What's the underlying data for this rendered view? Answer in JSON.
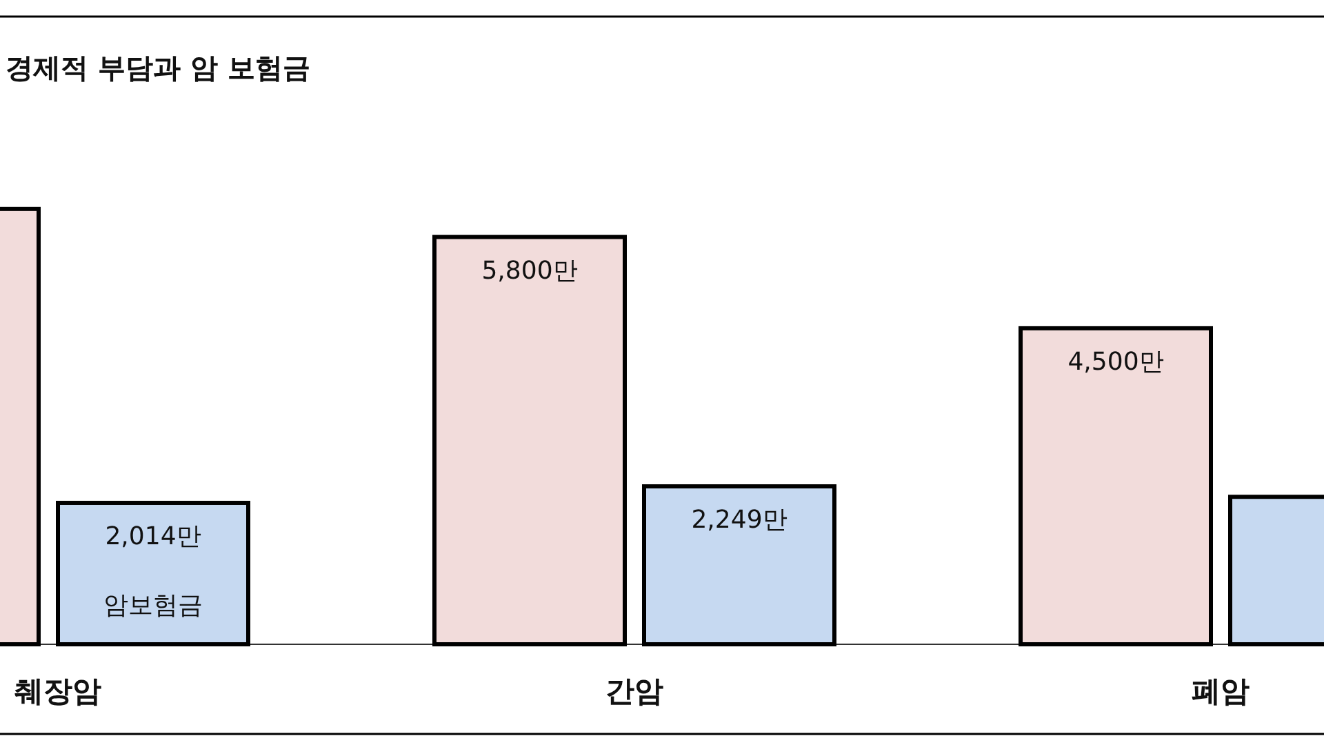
{
  "chart_data": {
    "type": "bar",
    "title": "경제적 부담과 암 보험금",
    "categories": [
      "췌장암",
      "간암",
      "폐암"
    ],
    "series": [
      {
        "color": "#f2dcdb",
        "values": [
          6200,
          5800,
          4500
        ],
        "value_labels": [
          null,
          "5,800만",
          "4,500만"
        ]
      },
      {
        "name": "암보험금",
        "color": "#c6d9f1",
        "values": [
          2014,
          2249,
          2100
        ],
        "value_labels": [
          "2,014만",
          "2,249만",
          null
        ]
      }
    ]
  }
}
